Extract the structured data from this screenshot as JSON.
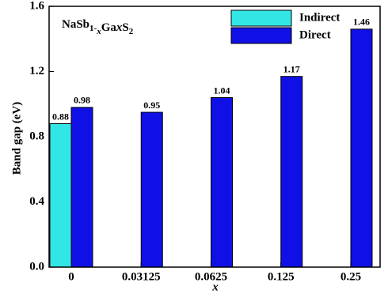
{
  "chart_data": {
    "type": "bar",
    "annotation": [
      "NaSb",
      "1-",
      "x",
      "Ga",
      "x",
      "S",
      "2"
    ],
    "xlabel": "x",
    "ylabel": "Band gap (eV)",
    "categories": [
      "0",
      "0.03125",
      "0.0625",
      "0.125",
      "0.25"
    ],
    "series": [
      {
        "name": "Indirect",
        "color": "#33e6e6",
        "values": [
          0.88,
          null,
          null,
          null,
          null
        ]
      },
      {
        "name": "Direct",
        "color": "#1010e6",
        "values": [
          0.98,
          0.95,
          1.04,
          1.17,
          1.46
        ]
      }
    ],
    "ylim": [
      0,
      1.6
    ],
    "yticks": [
      {
        "value": 0,
        "label": "0.0"
      },
      0.4,
      0.8,
      1.2,
      1.6
    ],
    "legend": "top"
  }
}
